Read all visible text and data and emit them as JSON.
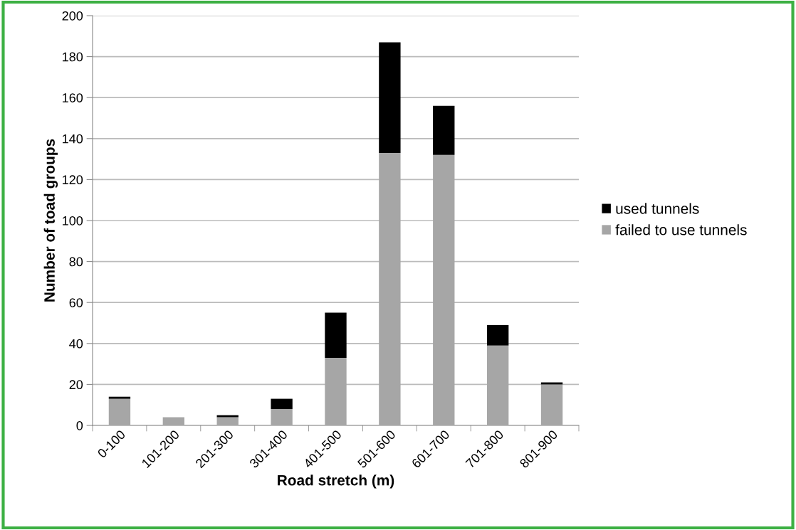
{
  "chart_data": {
    "type": "bar",
    "stacked": true,
    "xlabel": "Road stretch (m)",
    "ylabel": "Number of toad groups",
    "categories": [
      "0-100",
      "101-200",
      "201-300",
      "301-400",
      "401-500",
      "501-600",
      "601-700",
      "701-800",
      "801-900"
    ],
    "series": [
      {
        "name": "failed to use tunnels",
        "color": "#a6a6a6",
        "values": [
          13,
          4,
          4,
          8,
          33,
          133,
          132,
          39,
          20
        ]
      },
      {
        "name": "used tunnels",
        "color": "#000000",
        "values": [
          1,
          0,
          1,
          5,
          22,
          54,
          24,
          10,
          1
        ]
      }
    ],
    "ylim": [
      0,
      200
    ],
    "yticks": [
      0,
      20,
      40,
      60,
      80,
      100,
      120,
      140,
      160,
      180,
      200
    ],
    "grid": "y",
    "legend": "right"
  }
}
